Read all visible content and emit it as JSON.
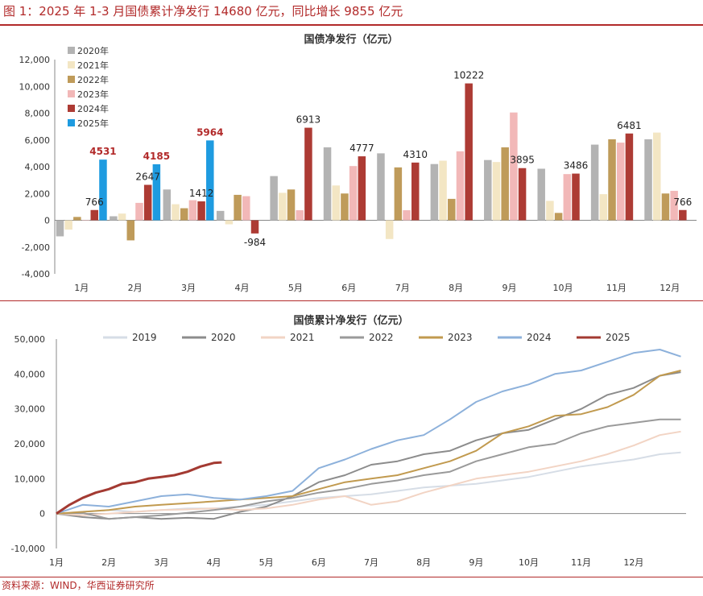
{
  "figure_title": "图 1：2025 年 1-3 月国债累计净发行 14680 亿元，同比增长 9855 亿元",
  "source": "资料来源：WIND，华西证券研究所",
  "chart_data": [
    {
      "type": "bar",
      "title": "国债净发行（亿元）",
      "categories": [
        "1月",
        "2月",
        "3月",
        "4月",
        "5月",
        "6月",
        "7月",
        "8月",
        "9月",
        "10月",
        "11月",
        "12月"
      ],
      "ylim": [
        -4000,
        12000
      ],
      "yticks": [
        -4000,
        -2000,
        0,
        2000,
        4000,
        6000,
        8000,
        10000,
        12000
      ],
      "ytick_labels": [
        "-4,000",
        "-2,000",
        "0",
        "2,000",
        "4,000",
        "6,000",
        "8,000",
        "10,000",
        "12,000"
      ],
      "legend_position": "top-left",
      "series": [
        {
          "name": "2020年",
          "color": "#b3b3b3",
          "values": [
            -1200,
            300,
            2300,
            700,
            3300,
            5450,
            5000,
            4200,
            4500,
            3850,
            5650,
            6050
          ]
        },
        {
          "name": "2021年",
          "color": "#f3e6c4",
          "values": [
            -700,
            500,
            1200,
            -300,
            2050,
            2600,
            -1400,
            4450,
            4350,
            1450,
            1950,
            6550
          ]
        },
        {
          "name": "2022年",
          "color": "#bf9b5a",
          "values": [
            250,
            -1500,
            900,
            1900,
            2300,
            2000,
            3950,
            1600,
            5450,
            550,
            6050,
            2000
          ]
        },
        {
          "name": "2023年",
          "color": "#f2b8b8",
          "values": [
            0,
            1300,
            1500,
            1800,
            750,
            4050,
            750,
            5150,
            8050,
            3450,
            5800,
            2200
          ]
        },
        {
          "name": "2024年",
          "color": "#ad3b34",
          "values": [
            766,
            2647,
            1412,
            -984,
            6913,
            4777,
            4310,
            10222,
            3895,
            3486,
            6481,
            766
          ]
        },
        {
          "name": "2025年",
          "color": "#1e9be0",
          "values": [
            4531,
            4185,
            5964,
            null,
            null,
            null,
            null,
            null,
            null,
            null,
            null,
            null
          ]
        }
      ],
      "data_labels": [
        {
          "series": "2024年",
          "category": "1月",
          "text": "766",
          "highlight": false
        },
        {
          "series": "2025年",
          "category": "1月",
          "text": "4531",
          "highlight": true
        },
        {
          "series": "2024年",
          "category": "2月",
          "text": "2647",
          "highlight": false
        },
        {
          "series": "2025年",
          "category": "2月",
          "text": "4185",
          "highlight": true
        },
        {
          "series": "2024年",
          "category": "3月",
          "text": "1412",
          "highlight": false
        },
        {
          "series": "2025年",
          "category": "3月",
          "text": "5964",
          "highlight": true
        },
        {
          "series": "2024年",
          "category": "4月",
          "text": "-984",
          "highlight": false
        },
        {
          "series": "2024年",
          "category": "5月",
          "text": "6913",
          "highlight": false
        },
        {
          "series": "2024年",
          "category": "6月",
          "text": "4777",
          "highlight": false
        },
        {
          "series": "2024年",
          "category": "7月",
          "text": "4310",
          "highlight": false
        },
        {
          "series": "2024年",
          "category": "8月",
          "text": "10222",
          "highlight": false
        },
        {
          "series": "2024年",
          "category": "9月",
          "text": "3895",
          "highlight": false
        },
        {
          "series": "2024年",
          "category": "10月",
          "text": "3486",
          "highlight": false
        },
        {
          "series": "2024年",
          "category": "11月",
          "text": "6481",
          "highlight": false
        },
        {
          "series": "2024年",
          "category": "12月",
          "text": "766",
          "highlight": false
        }
      ]
    },
    {
      "type": "line",
      "title": "国债累计净发行（亿元）",
      "x_labels": [
        "1月",
        "2月",
        "3月",
        "4月",
        "5月",
        "6月",
        "7月",
        "8月",
        "9月",
        "10月",
        "11月",
        "12月"
      ],
      "x_domain": [
        1,
        13
      ],
      "ylim": [
        -10000,
        50000
      ],
      "yticks": [
        -10000,
        0,
        10000,
        20000,
        30000,
        40000,
        50000
      ],
      "ytick_labels": [
        "-10,000",
        "0",
        "10,000",
        "20,000",
        "30,000",
        "40,000",
        "50,000"
      ],
      "legend_position": "top",
      "series": [
        {
          "name": "2019",
          "color": "#d6dde6",
          "width": 2,
          "x": [
            1,
            1.5,
            2,
            2.5,
            3,
            3.5,
            4,
            4.5,
            5,
            5.5,
            6,
            6.5,
            7,
            7.5,
            8,
            8.5,
            9,
            9.5,
            10,
            10.5,
            11,
            11.5,
            12,
            12.5,
            12.9
          ],
          "y": [
            0,
            500,
            1000,
            500,
            1000,
            1500,
            1500,
            2000,
            2500,
            3500,
            4500,
            5000,
            5500,
            6500,
            7500,
            8000,
            8500,
            9500,
            10500,
            12000,
            13500,
            14500,
            15500,
            17000,
            17500
          ]
        },
        {
          "name": "2020",
          "color": "#8c8c8c",
          "width": 2,
          "x": [
            1,
            1.5,
            2,
            2.5,
            3,
            3.5,
            4,
            4.5,
            5,
            5.5,
            6,
            6.5,
            7,
            7.5,
            8,
            8.5,
            9,
            9.5,
            10,
            10.5,
            11,
            11.5,
            12,
            12.5,
            12.9
          ],
          "y": [
            0,
            -1000,
            -1500,
            -1000,
            -1500,
            -1200,
            -1500,
            500,
            2000,
            5000,
            9000,
            11000,
            14000,
            15000,
            17000,
            18000,
            21000,
            23000,
            24000,
            27000,
            30000,
            34000,
            36000,
            39500,
            40500
          ]
        },
        {
          "name": "2021",
          "color": "#f2d4c4",
          "width": 2,
          "x": [
            1,
            1.5,
            2,
            2.5,
            3,
            3.5,
            4,
            4.5,
            5,
            5.5,
            6,
            6.5,
            7,
            7.5,
            8,
            8.5,
            9,
            9.5,
            10,
            10.5,
            11,
            11.5,
            12,
            12.5,
            12.9
          ],
          "y": [
            0,
            -500,
            0,
            500,
            1000,
            1200,
            1500,
            1000,
            1500,
            2500,
            4000,
            5000,
            2500,
            3500,
            6000,
            8000,
            10000,
            11000,
            12000,
            13500,
            15000,
            17000,
            19500,
            22500,
            23500
          ]
        },
        {
          "name": "2022",
          "color": "#9a9a9a",
          "width": 2,
          "x": [
            1,
            1.5,
            2,
            2.5,
            3,
            3.5,
            4,
            4.5,
            5,
            5.5,
            6,
            6.5,
            7,
            7.5,
            8,
            8.5,
            9,
            9.5,
            10,
            10.5,
            11,
            11.5,
            12,
            12.5,
            12.9
          ],
          "y": [
            0,
            200,
            -1500,
            -1000,
            -500,
            200,
            1000,
            2000,
            3500,
            4500,
            6000,
            7000,
            8500,
            9500,
            11000,
            12000,
            15000,
            17000,
            19000,
            20000,
            23000,
            25000,
            26000,
            27000,
            27000
          ]
        },
        {
          "name": "2023",
          "color": "#c19a4f",
          "width": 2,
          "x": [
            1,
            1.5,
            2,
            2.5,
            3,
            3.5,
            4,
            4.5,
            5,
            5.5,
            6,
            6.5,
            7,
            7.5,
            8,
            8.5,
            9,
            9.5,
            10,
            10.5,
            11,
            11.5,
            12,
            12.5,
            12.9
          ],
          "y": [
            0,
            500,
            1000,
            2000,
            2500,
            3000,
            3500,
            4000,
            4500,
            5000,
            7000,
            9000,
            10000,
            11000,
            13000,
            15000,
            18000,
            23000,
            25000,
            28000,
            28500,
            30500,
            34000,
            39500,
            41000
          ]
        },
        {
          "name": "2024",
          "color": "#8db1db",
          "width": 2,
          "x": [
            1,
            1.5,
            2,
            2.5,
            3,
            3.5,
            4,
            4.5,
            5,
            5.5,
            6,
            6.5,
            7,
            7.5,
            8,
            8.5,
            9,
            9.5,
            10,
            10.5,
            11,
            11.5,
            12,
            12.5,
            12.9
          ],
          "y": [
            0,
            2500,
            2000,
            3500,
            5000,
            5500,
            4500,
            4000,
            5000,
            6500,
            13000,
            15500,
            18500,
            21000,
            22500,
            27000,
            32000,
            35000,
            37000,
            40000,
            41000,
            43500,
            46000,
            47000,
            45000
          ]
        },
        {
          "name": "2025",
          "color": "#a33a32",
          "width": 3,
          "x": [
            1,
            1.25,
            1.5,
            1.75,
            2,
            2.25,
            2.5,
            2.75,
            3,
            3.25,
            3.5,
            3.75,
            4,
            4.15
          ],
          "y": [
            0,
            2500,
            4500,
            6000,
            7000,
            8500,
            9000,
            10000,
            10500,
            11000,
            12000,
            13500,
            14500,
            14680
          ]
        }
      ]
    }
  ]
}
